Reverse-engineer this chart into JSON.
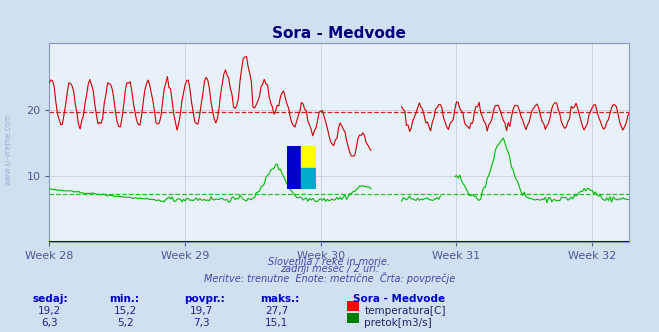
{
  "title": "Sora - Medvode",
  "title_color": "#000080",
  "bg_color": "#d0e0f0",
  "plot_bg_color": "#e8f0f8",
  "grid_color": "#c0c8d8",
  "x_labels": [
    "Week 28",
    "Week 29",
    "Week 30",
    "Week 31",
    "Week 32"
  ],
  "x_ticks": [
    0,
    84,
    168,
    252,
    336
  ],
  "y_ticks": [
    10,
    20
  ],
  "temp_avg": 19.7,
  "flow_avg": 7.3,
  "temp_color": "#cc0000",
  "flow_color": "#00bb00",
  "subtitle1": "Slovenija / reke in morje.",
  "subtitle2": "zadnji mesec / 2 uri.",
  "subtitle3": "Meritve: trenutne  Enote: metrične  Črta: povprečje",
  "subtitle_color": "#4444aa",
  "table_label_color": "#0000cc",
  "table_headers": [
    "sedaj:",
    "min.:",
    "povpr.:",
    "maks.:"
  ],
  "temp_row": [
    "19,2",
    "15,2",
    "19,7",
    "27,7"
  ],
  "flow_row": [
    "6,3",
    "5,2",
    "7,3",
    "15,1"
  ],
  "legend_title": "Sora - Medvode",
  "legend_temp": "temperatura[C]",
  "legend_flow": "pretok[m3/s]",
  "n_points": 360
}
